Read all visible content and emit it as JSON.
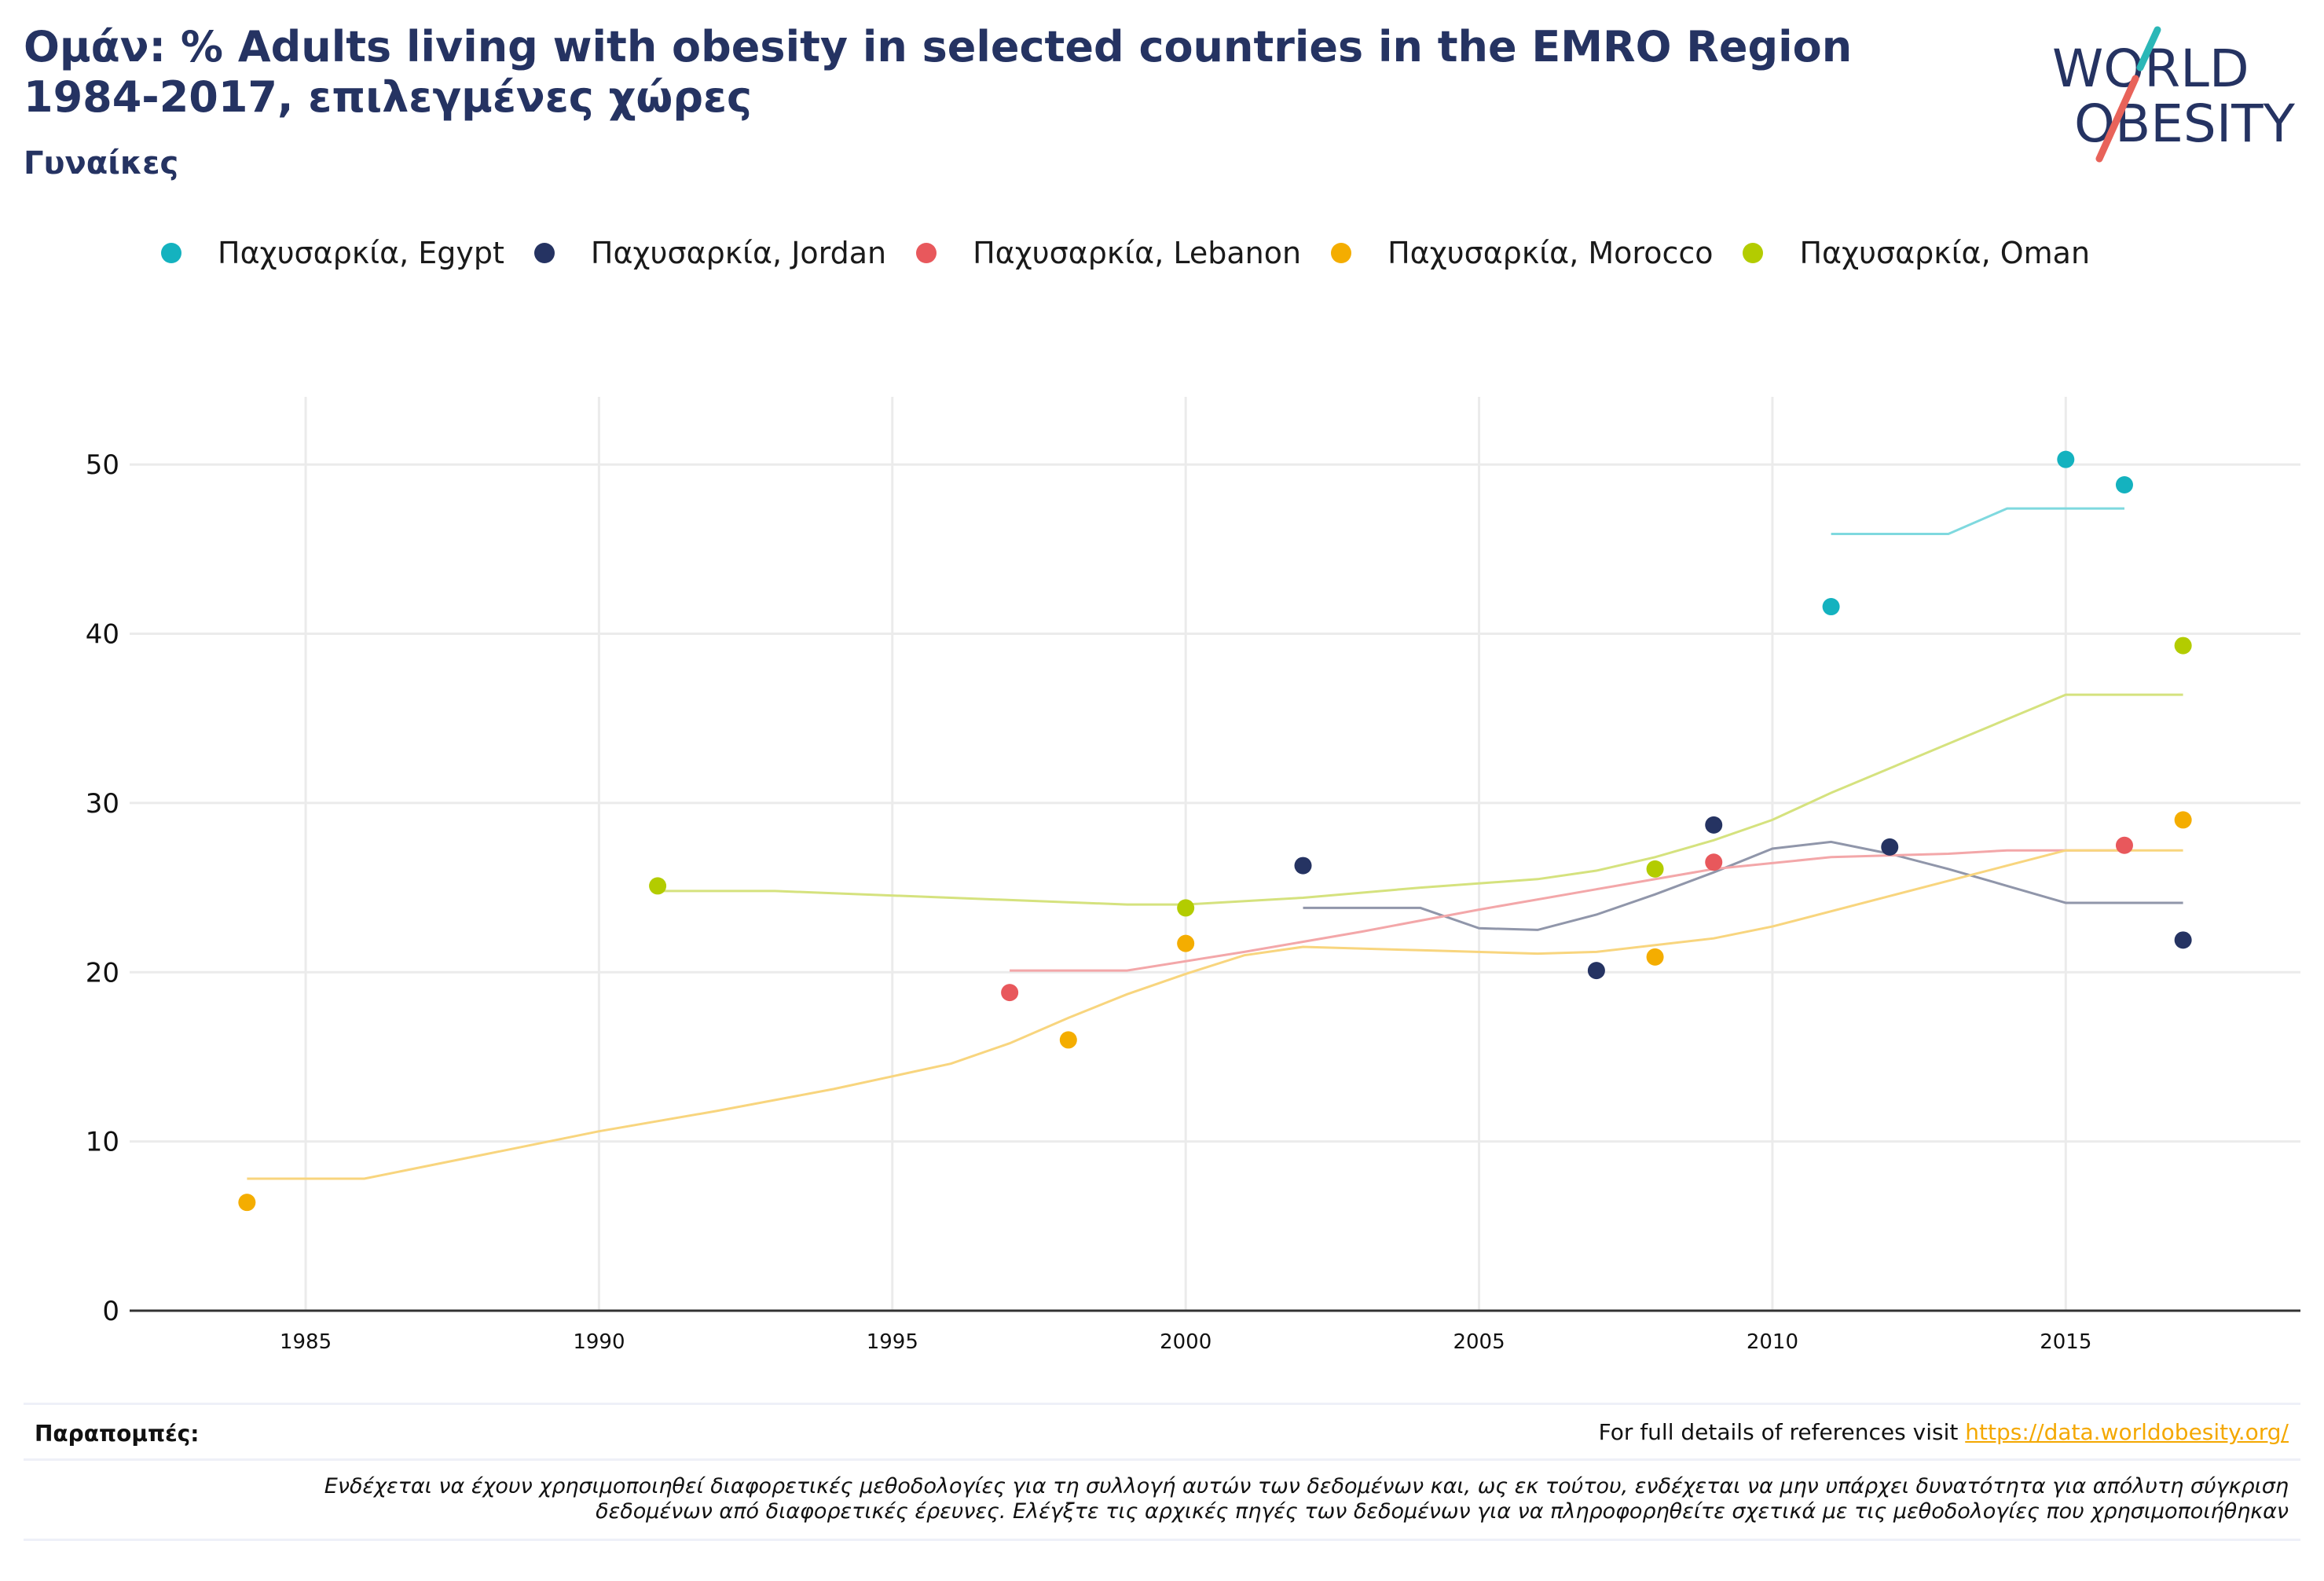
{
  "header": {
    "title_line1": "Ομάν: % Adults living with obesity in selected countries in the EMRO Region",
    "title_line2": "1984-2017, επιλεγμένες χώρες",
    "subtitle": "Γυναίκες"
  },
  "logo": {
    "line1": "WORLD",
    "line2": "OBESITY"
  },
  "legend": [
    {
      "label": "Παχυσαρκία, Egypt",
      "color": "#14b2bf"
    },
    {
      "label": "Παχυσαρκία, Jordan",
      "color": "#253362"
    },
    {
      "label": "Παχυσαρκία, Lebanon",
      "color": "#e8585c"
    },
    {
      "label": "Παχυσαρκία, Morocco",
      "color": "#f4ad00"
    },
    {
      "label": "Παχυσαρκία, Oman",
      "color": "#b3cc00"
    }
  ],
  "footer": {
    "refs_label": "Παραπομπές:",
    "refs_text": "For full details of references visit",
    "refs_link": "https://data.worldobesity.org/",
    "disclaimer_line1": "Ενδέχεται να έχουν χρησιμοποιηθεί διαφορετικές μεθοδολογίες για τη συλλογή αυτών των δεδομένων και, ως εκ τούτου, ενδέχεται να μην υπάρχει δυνατότητα για απόλυτη σύγκριση",
    "disclaimer_line2": "δεδομένων από διαφορετικές έρευνες. Ελέγξτε τις αρχικές πηγές των δεδομένων για να πληροφορηθείτε σχετικά με τις μεθοδολογίες που χρησιμοποιήθηκαν"
  },
  "chart_data": {
    "type": "scatter",
    "title": "Ομάν: % Adults living with obesity in selected countries in the EMRO Region 1984-2017, επιλεγμένες χώρες",
    "subtitle": "Γυναίκες",
    "xlim": [
      1982,
      2019
    ],
    "ylim": [
      0,
      54
    ],
    "x_ticks": [
      1985,
      1990,
      1995,
      2000,
      2005,
      2010,
      2015
    ],
    "y_ticks": [
      0,
      10,
      20,
      30,
      40,
      50
    ],
    "grid": true,
    "legend_position": "top",
    "series": [
      {
        "name": "Παχυσαρκία, Egypt",
        "color": "#14b2bf",
        "line_color": "#7fd9df",
        "points": [
          [
            2011,
            41.6
          ],
          [
            2015,
            50.3
          ],
          [
            2016,
            48.8
          ]
        ],
        "trend": [
          [
            2011,
            45.9
          ],
          [
            2013,
            45.9
          ],
          [
            2014,
            47.4
          ],
          [
            2016,
            47.4
          ]
        ]
      },
      {
        "name": "Παχυσαρκία, Jordan",
        "color": "#253362",
        "line_color": "#9096aa",
        "points": [
          [
            2002,
            26.3
          ],
          [
            2007,
            20.1
          ],
          [
            2009,
            28.7
          ],
          [
            2012,
            27.4
          ],
          [
            2017,
            21.9
          ]
        ],
        "trend": [
          [
            2002,
            23.8
          ],
          [
            2004,
            23.8
          ],
          [
            2005,
            22.6
          ],
          [
            2006,
            22.5
          ],
          [
            2007,
            23.4
          ],
          [
            2008,
            24.6
          ],
          [
            2009,
            25.9
          ],
          [
            2010,
            27.3
          ],
          [
            2011,
            27.7
          ],
          [
            2012,
            27.0
          ],
          [
            2013,
            26.1
          ],
          [
            2014,
            25.1
          ],
          [
            2015,
            24.1
          ],
          [
            2017,
            24.1
          ]
        ]
      },
      {
        "name": "Παχυσαρκία, Lebanon",
        "color": "#e8585c",
        "line_color": "#f3a7a9",
        "points": [
          [
            1997,
            18.8
          ],
          [
            2009,
            26.5
          ],
          [
            2016,
            27.5
          ]
        ],
        "trend": [
          [
            1997,
            20.1
          ],
          [
            1999,
            20.1
          ],
          [
            2001,
            21.2
          ],
          [
            2003,
            22.4
          ],
          [
            2005,
            23.7
          ],
          [
            2007,
            24.9
          ],
          [
            2009,
            26.1
          ],
          [
            2011,
            26.8
          ],
          [
            2013,
            27.0
          ],
          [
            2014,
            27.2
          ],
          [
            2016,
            27.2
          ]
        ]
      },
      {
        "name": "Παχυσαρκία, Morocco",
        "color": "#f4ad00",
        "line_color": "#f8d57e",
        "points": [
          [
            1984,
            6.4
          ],
          [
            1998,
            16.0
          ],
          [
            2000,
            21.7
          ],
          [
            2008,
            20.9
          ],
          [
            2017,
            29.0
          ]
        ],
        "trend": [
          [
            1984,
            7.8
          ],
          [
            1986,
            7.8
          ],
          [
            1988,
            9.2
          ],
          [
            1990,
            10.6
          ],
          [
            1992,
            11.8
          ],
          [
            1994,
            13.1
          ],
          [
            1996,
            14.6
          ],
          [
            1997,
            15.8
          ],
          [
            1998,
            17.3
          ],
          [
            1999,
            18.7
          ],
          [
            2000,
            19.9
          ],
          [
            2001,
            21.0
          ],
          [
            2002,
            21.5
          ],
          [
            2004,
            21.3
          ],
          [
            2006,
            21.1
          ],
          [
            2007,
            21.2
          ],
          [
            2009,
            22.0
          ],
          [
            2010,
            22.7
          ],
          [
            2012,
            24.5
          ],
          [
            2014,
            26.3
          ],
          [
            2015,
            27.2
          ],
          [
            2017,
            27.2
          ]
        ]
      },
      {
        "name": "Παχυσαρκία, Oman",
        "color": "#b3cc00",
        "line_color": "#d5e27e",
        "points": [
          [
            1991,
            25.1
          ],
          [
            2000,
            23.8
          ],
          [
            2008,
            26.1
          ],
          [
            2017,
            39.3
          ]
        ],
        "trend": [
          [
            1991,
            24.8
          ],
          [
            1993,
            24.8
          ],
          [
            1996,
            24.4
          ],
          [
            1999,
            24.0
          ],
          [
            2000,
            24.0
          ],
          [
            2002,
            24.4
          ],
          [
            2004,
            25.0
          ],
          [
            2006,
            25.5
          ],
          [
            2007,
            26.0
          ],
          [
            2008,
            26.8
          ],
          [
            2009,
            27.8
          ],
          [
            2010,
            29.0
          ],
          [
            2011,
            30.6
          ],
          [
            2013,
            33.5
          ],
          [
            2015,
            36.4
          ],
          [
            2017,
            36.4
          ]
        ]
      }
    ]
  }
}
